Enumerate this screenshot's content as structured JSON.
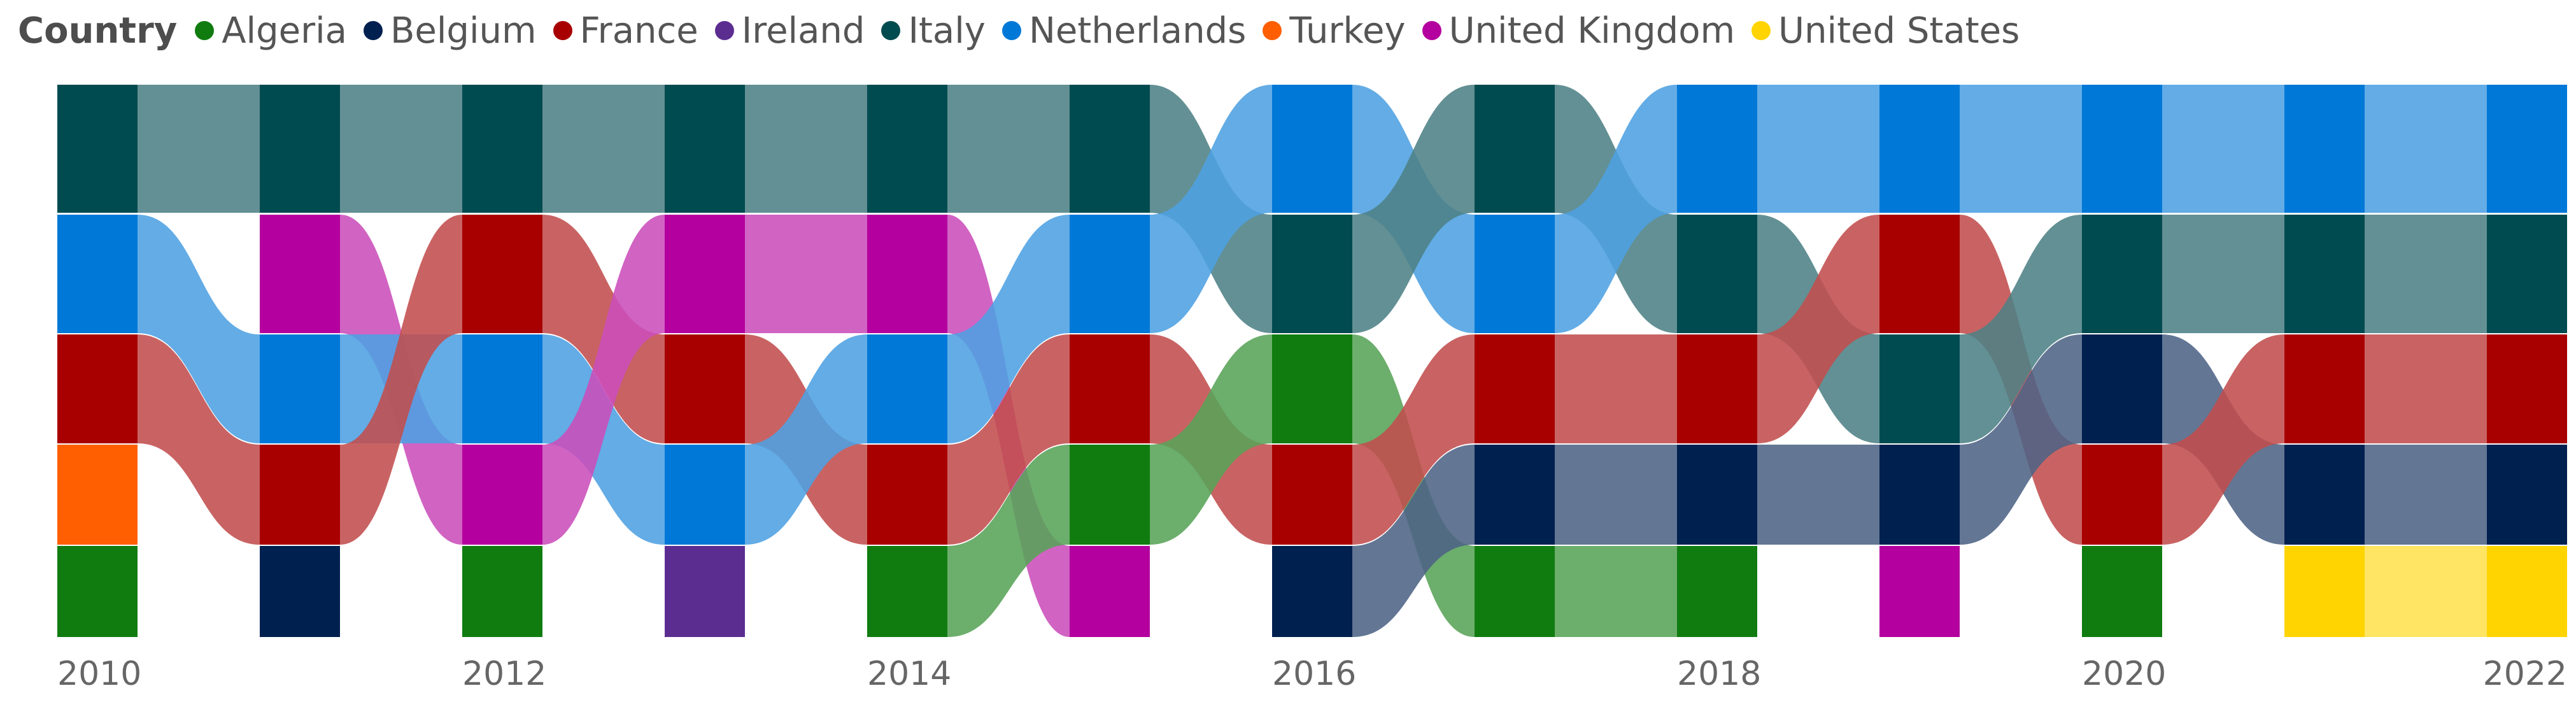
{
  "chart_data": {
    "type": "ribbon",
    "legend_title": "Country",
    "legend_position": "top-left",
    "grid": false,
    "x_ticks": [
      "2010",
      "2012",
      "2014",
      "2016",
      "2018",
      "2020",
      "2022"
    ],
    "years": [
      2010,
      2011,
      2012,
      2013,
      2014,
      2015,
      2016,
      2017,
      2018,
      2019,
      2020,
      2021,
      2022
    ],
    "series": [
      {
        "name": "Algeria",
        "color": "#107c10"
      },
      {
        "name": "Belgium",
        "color": "#002050"
      },
      {
        "name": "France",
        "color": "#a80000"
      },
      {
        "name": "Ireland",
        "color": "#5c2d91"
      },
      {
        "name": "Italy",
        "color": "#004b50"
      },
      {
        "name": "Netherlands",
        "color": "#0078d7"
      },
      {
        "name": "Turkey",
        "color": "#ff5f00"
      },
      {
        "name": "United Kingdom",
        "color": "#b4009e"
      },
      {
        "name": "United States",
        "color": "#ffd400"
      }
    ],
    "ranking_top_to_bottom": [
      [
        "Italy",
        "Netherlands",
        "France",
        "Turkey",
        "Algeria"
      ],
      [
        "Italy",
        "United Kingdom",
        "Netherlands",
        "France",
        "Belgium"
      ],
      [
        "Italy",
        "France",
        "Netherlands",
        "United Kingdom",
        "Algeria"
      ],
      [
        "Italy",
        "United Kingdom",
        "France",
        "Netherlands",
        "Ireland"
      ],
      [
        "Italy",
        "United Kingdom",
        "Netherlands",
        "France",
        "Algeria"
      ],
      [
        "Italy",
        "Netherlands",
        "France",
        "Algeria",
        "United Kingdom"
      ],
      [
        "Netherlands",
        "Italy",
        "Algeria",
        "France",
        "Belgium"
      ],
      [
        "Italy",
        "Netherlands",
        "France",
        "Belgium",
        "Algeria"
      ],
      [
        "Netherlands",
        "Italy",
        "France",
        "Belgium",
        "Algeria"
      ],
      [
        "Netherlands",
        "France",
        "Italy",
        "Belgium",
        "United Kingdom"
      ],
      [
        "Netherlands",
        "Italy",
        "Belgium",
        "France",
        "Algeria"
      ],
      [
        "Netherlands",
        "Italy",
        "France",
        "Belgium",
        "United States"
      ],
      [
        "Netherlands",
        "Italy",
        "France",
        "Belgium",
        "United States"
      ]
    ],
    "relative_values": [
      [
        1.0,
        0.9,
        0.85,
        0.7,
        0.7
      ],
      [
        1.0,
        0.9,
        0.85,
        0.7,
        0.7
      ],
      [
        1.0,
        0.9,
        0.85,
        0.7,
        0.7
      ],
      [
        1.0,
        0.9,
        0.85,
        0.7,
        0.7
      ],
      [
        1.0,
        0.9,
        0.85,
        0.7,
        0.7
      ],
      [
        1.0,
        0.9,
        0.85,
        0.7,
        0.7
      ],
      [
        1.0,
        0.9,
        0.85,
        0.7,
        0.7
      ],
      [
        1.0,
        0.9,
        0.85,
        0.7,
        0.7
      ],
      [
        1.0,
        0.9,
        0.85,
        0.7,
        0.7
      ],
      [
        1.0,
        0.9,
        0.85,
        0.7,
        0.7
      ],
      [
        1.0,
        0.9,
        0.85,
        0.7,
        0.7
      ],
      [
        1.0,
        0.9,
        0.85,
        0.7,
        0.7
      ],
      [
        1.0,
        0.9,
        0.85,
        0.7,
        0.7
      ]
    ]
  }
}
